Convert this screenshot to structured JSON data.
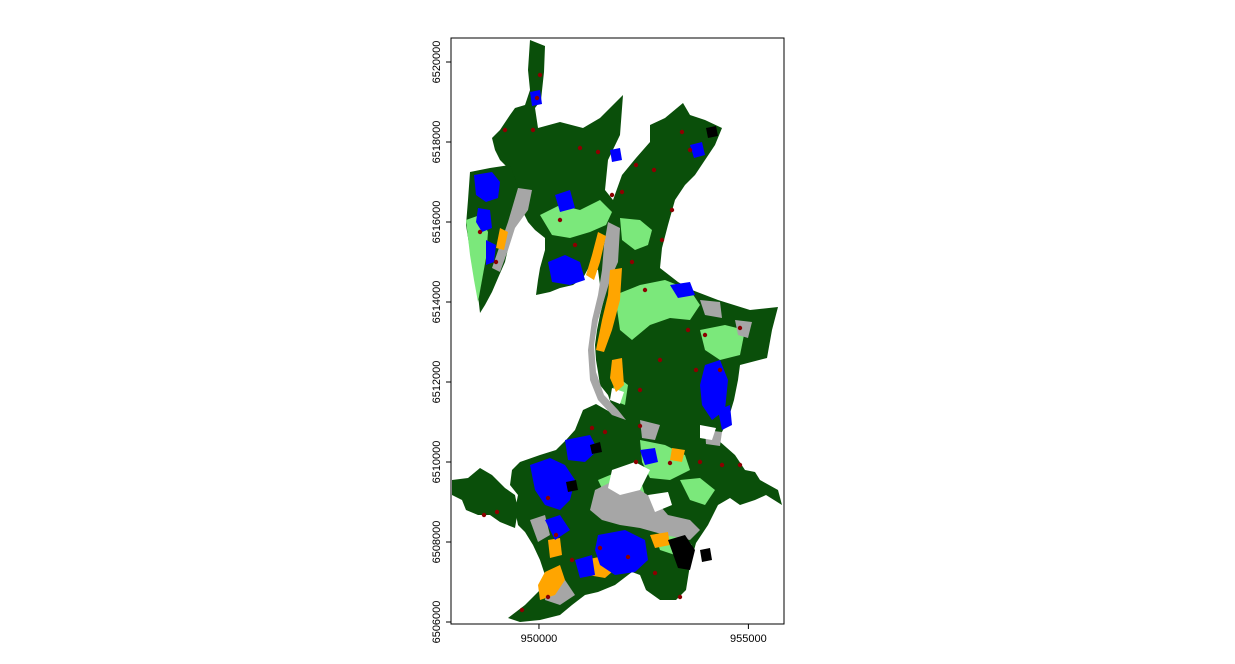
{
  "map": {
    "x_axis": {
      "range": [
        947900,
        955850
      ],
      "ticks": [
        {
          "value": 950000,
          "label": "950000"
        },
        {
          "value": 955000,
          "label": "955000"
        }
      ]
    },
    "y_axis": {
      "range": [
        6505950,
        6520600
      ],
      "ticks": [
        {
          "value": 6506000,
          "label": "6506000"
        },
        {
          "value": 6508000,
          "label": "6508000"
        },
        {
          "value": 6510000,
          "label": "6510000"
        },
        {
          "value": 6512000,
          "label": "6512000"
        },
        {
          "value": 6514000,
          "label": "6514000"
        },
        {
          "value": 6516000,
          "label": "6516000"
        },
        {
          "value": 6518000,
          "label": "6518000"
        },
        {
          "value": 6520000,
          "label": "6520000"
        }
      ]
    },
    "legend": "none",
    "grid": false,
    "colors": {
      "forest": "#0a4f0a",
      "meadow": "#7be87b",
      "water": "#0000ff",
      "bare": "#a6a6a6",
      "transition": "#ffa500",
      "dark": "#000000",
      "points": "#8b0000",
      "background": "#ffffff"
    }
  }
}
